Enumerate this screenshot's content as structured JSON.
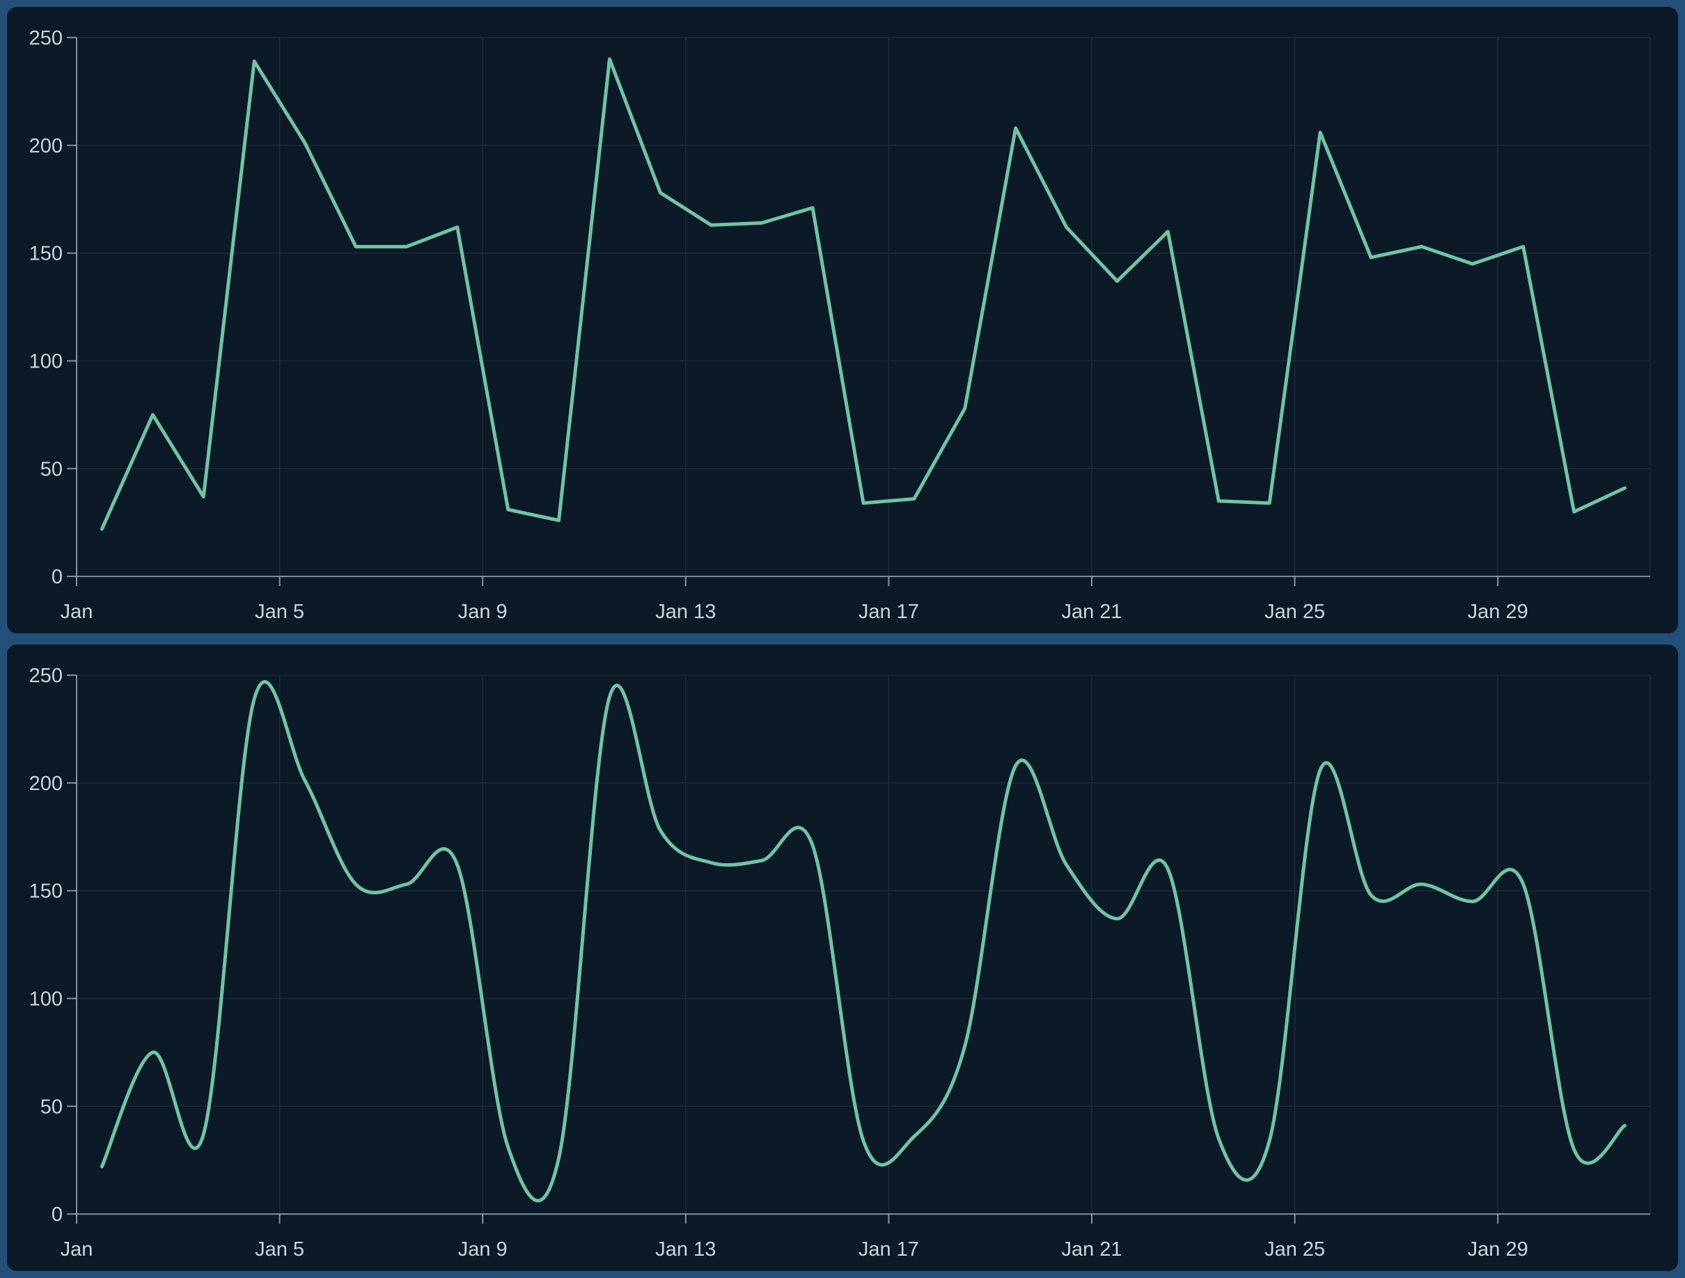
{
  "page": {
    "background_color": "#234F7A",
    "panel_background_color": "#0B1A26"
  },
  "colors": {
    "series_line": "#73C2A5",
    "gridline": "#1C2B39",
    "axis_line": "#9FACB8",
    "tick_mark": "#AEB9C3",
    "tick_label": "#CDD4DB"
  },
  "chart_data": [
    {
      "type": "line",
      "name": "daily-values-linear",
      "line_shape": "linear",
      "title": "",
      "x": [
        "Jan 1",
        "Jan 2",
        "Jan 3",
        "Jan 4",
        "Jan 5",
        "Jan 6",
        "Jan 7",
        "Jan 8",
        "Jan 9",
        "Jan 10",
        "Jan 11",
        "Jan 12",
        "Jan 13",
        "Jan 14",
        "Jan 15",
        "Jan 16",
        "Jan 17",
        "Jan 18",
        "Jan 19",
        "Jan 20",
        "Jan 21",
        "Jan 22",
        "Jan 23",
        "Jan 24",
        "Jan 25",
        "Jan 26",
        "Jan 27",
        "Jan 28",
        "Jan 29",
        "Jan 30",
        "Jan 31"
      ],
      "values": [
        22,
        75,
        37,
        239,
        201,
        153,
        153,
        162,
        31,
        26,
        240,
        178,
        163,
        164,
        171,
        34,
        36,
        78,
        208,
        162,
        137,
        160,
        35,
        34,
        206,
        148,
        153,
        145,
        153,
        30,
        41
      ],
      "x_tick_labels": [
        "Jan",
        "Jan 5",
        "Jan 9",
        "Jan 13",
        "Jan 17",
        "Jan 21",
        "Jan 25",
        "Jan 29"
      ],
      "x_tick_every": 4,
      "y_ticks": [
        0,
        50,
        100,
        150,
        200,
        250
      ],
      "ylim": [
        0,
        250
      ],
      "xlabel": "",
      "ylabel": "",
      "grid": true,
      "legend": "none"
    },
    {
      "type": "line",
      "name": "daily-values-smooth",
      "line_shape": "smooth",
      "title": "",
      "x": [
        "Jan 1",
        "Jan 2",
        "Jan 3",
        "Jan 4",
        "Jan 5",
        "Jan 6",
        "Jan 7",
        "Jan 8",
        "Jan 9",
        "Jan 10",
        "Jan 11",
        "Jan 12",
        "Jan 13",
        "Jan 14",
        "Jan 15",
        "Jan 16",
        "Jan 17",
        "Jan 18",
        "Jan 19",
        "Jan 20",
        "Jan 21",
        "Jan 22",
        "Jan 23",
        "Jan 24",
        "Jan 25",
        "Jan 26",
        "Jan 27",
        "Jan 28",
        "Jan 29",
        "Jan 30",
        "Jan 31"
      ],
      "values": [
        22,
        75,
        37,
        239,
        201,
        153,
        153,
        162,
        31,
        26,
        240,
        178,
        163,
        164,
        171,
        34,
        36,
        78,
        208,
        162,
        137,
        160,
        35,
        34,
        206,
        148,
        153,
        145,
        153,
        30,
        41
      ],
      "x_tick_labels": [
        "Jan",
        "Jan 5",
        "Jan 9",
        "Jan 13",
        "Jan 17",
        "Jan 21",
        "Jan 25",
        "Jan 29"
      ],
      "x_tick_every": 4,
      "y_ticks": [
        0,
        50,
        100,
        150,
        200,
        250
      ],
      "ylim": [
        0,
        250
      ],
      "xlabel": "",
      "ylabel": "",
      "grid": true,
      "legend": "none"
    }
  ]
}
